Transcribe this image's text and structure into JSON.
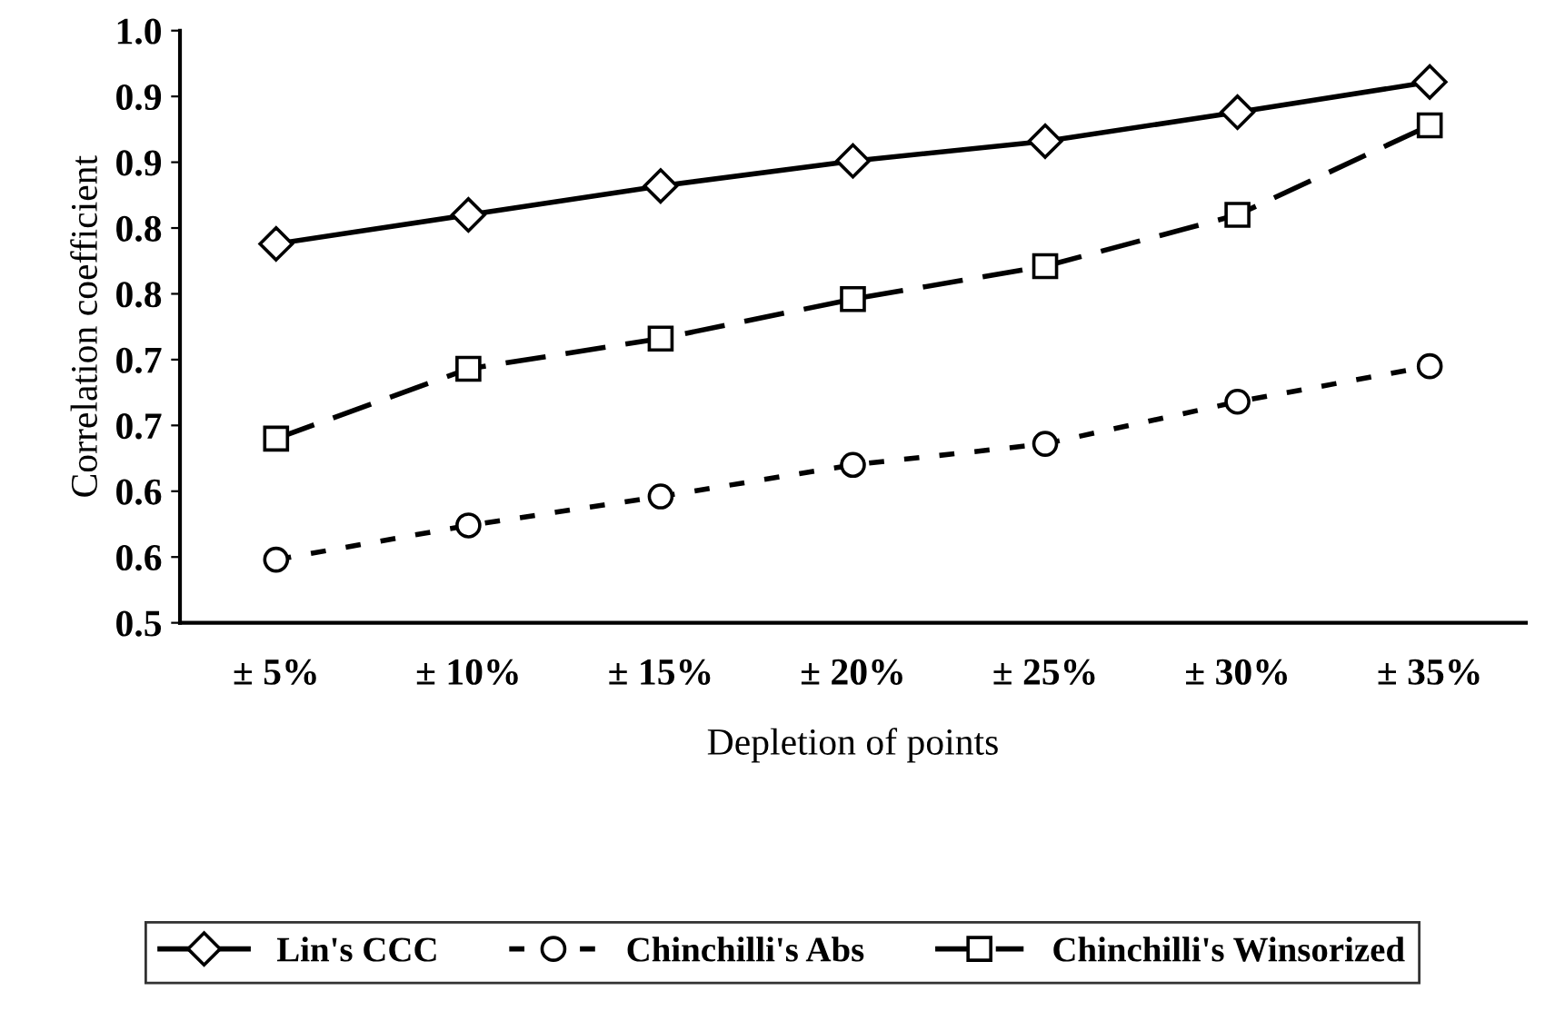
{
  "chart_data": {
    "type": "line",
    "xlabel": "Depletion of points",
    "ylabel": "Correlation coefficient",
    "categories": [
      "± 5%",
      "± 10%",
      "± 15%",
      "± 20%",
      "± 25%",
      "± 30%",
      "± 35%"
    ],
    "ylim": [
      0.5,
      0.95
    ],
    "yticks": [
      {
        "value": 0.5,
        "label": "0.5"
      },
      {
        "value": 0.55,
        "label": "0.6"
      },
      {
        "value": 0.6,
        "label": "0.6"
      },
      {
        "value": 0.65,
        "label": "0.7"
      },
      {
        "value": 0.7,
        "label": "0.7"
      },
      {
        "value": 0.75,
        "label": "0.8"
      },
      {
        "value": 0.8,
        "label": "0.8"
      },
      {
        "value": 0.85,
        "label": "0.9"
      },
      {
        "value": 0.9,
        "label": "0.9"
      },
      {
        "value": 0.95,
        "label": "1.0"
      }
    ],
    "grid": false,
    "legend": "bottom",
    "series": [
      {
        "name": "Lin's CCC",
        "color": "#000000",
        "marker": "diamond",
        "line_style": "solid",
        "values": [
          0.788,
          0.81,
          0.832,
          0.851,
          0.866,
          0.888,
          0.911
        ]
      },
      {
        "name": "Chinchilli's Abs",
        "color": "#000000",
        "marker": "circle",
        "line_style": "dotted",
        "values": [
          0.548,
          0.574,
          0.596,
          0.62,
          0.636,
          0.668,
          0.695
        ]
      },
      {
        "name": "Chinchilli's Winsorized",
        "color": "#000000",
        "marker": "square",
        "line_style": "dashed",
        "values": [
          0.64,
          0.693,
          0.716,
          0.746,
          0.771,
          0.81,
          0.878
        ]
      }
    ]
  }
}
